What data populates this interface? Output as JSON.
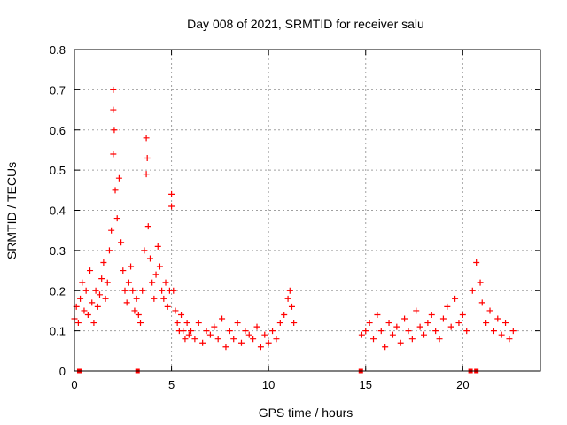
{
  "chart_data": {
    "type": "scatter",
    "title": "Day 008 of 2021, SRMTID for receiver salu",
    "xlabel": "GPS time / hours",
    "ylabel": "SRMTID / TECUs",
    "xlim": [
      0,
      24
    ],
    "ylim": [
      0,
      0.8
    ],
    "x_ticks": [
      0,
      5,
      10,
      15,
      20
    ],
    "x_tick_labels": [
      "0",
      "5",
      "10",
      "15",
      "20"
    ],
    "y_ticks": [
      0,
      0.1,
      0.2,
      0.3,
      0.4,
      0.5,
      0.6,
      0.7,
      0.8
    ],
    "y_tick_labels": [
      "0",
      "0.1",
      "0.2",
      "0.3",
      "0.4",
      "0.5",
      "0.6",
      "0.7",
      "0.8"
    ],
    "grid": true,
    "marker": "+",
    "color": "#ff0000",
    "baseline_markers_x": [
      0.25,
      3.25,
      14.75,
      20.4,
      20.7
    ],
    "series": [
      {
        "name": "SRMTID",
        "x": [
          0.0,
          0.1,
          0.2,
          0.3,
          0.4,
          0.5,
          0.6,
          0.7,
          0.8,
          0.9,
          1.0,
          1.1,
          1.2,
          1.3,
          1.4,
          1.5,
          1.6,
          1.7,
          1.8,
          1.9,
          2.0,
          2.0,
          2.0,
          2.05,
          2.1,
          2.2,
          2.3,
          2.4,
          2.5,
          2.6,
          2.7,
          2.8,
          2.9,
          3.0,
          3.1,
          3.2,
          3.3,
          3.4,
          3.5,
          3.6,
          3.7,
          3.7,
          3.75,
          3.8,
          3.9,
          4.0,
          4.1,
          4.2,
          4.3,
          4.4,
          4.5,
          4.6,
          4.7,
          4.8,
          4.9,
          5.0,
          5.0,
          5.1,
          5.2,
          5.3,
          5.4,
          5.5,
          5.6,
          5.7,
          5.8,
          5.9,
          6.0,
          6.2,
          6.4,
          6.6,
          6.8,
          7.0,
          7.2,
          7.4,
          7.6,
          7.8,
          8.0,
          8.2,
          8.4,
          8.6,
          8.8,
          9.0,
          9.2,
          9.4,
          9.6,
          9.8,
          10.0,
          10.2,
          10.4,
          10.6,
          10.8,
          11.0,
          11.1,
          11.2,
          11.3,
          14.8,
          15.0,
          15.2,
          15.4,
          15.6,
          15.8,
          16.0,
          16.2,
          16.4,
          16.6,
          16.8,
          17.0,
          17.2,
          17.4,
          17.6,
          17.8,
          18.0,
          18.2,
          18.4,
          18.6,
          18.8,
          19.0,
          19.2,
          19.4,
          19.6,
          19.8,
          20.0,
          20.2,
          20.5,
          20.7,
          20.9,
          21.0,
          21.2,
          21.4,
          21.6,
          21.8,
          22.0,
          22.2,
          22.4,
          22.6
        ],
        "y": [
          0.13,
          0.16,
          0.12,
          0.18,
          0.22,
          0.15,
          0.2,
          0.14,
          0.25,
          0.17,
          0.12,
          0.2,
          0.16,
          0.19,
          0.23,
          0.27,
          0.18,
          0.22,
          0.3,
          0.35,
          0.54,
          0.65,
          0.7,
          0.6,
          0.45,
          0.38,
          0.48,
          0.32,
          0.25,
          0.2,
          0.17,
          0.22,
          0.26,
          0.2,
          0.15,
          0.18,
          0.14,
          0.12,
          0.2,
          0.3,
          0.58,
          0.49,
          0.53,
          0.36,
          0.28,
          0.22,
          0.18,
          0.24,
          0.31,
          0.26,
          0.2,
          0.18,
          0.22,
          0.16,
          0.2,
          0.44,
          0.41,
          0.2,
          0.15,
          0.12,
          0.1,
          0.14,
          0.1,
          0.08,
          0.12,
          0.09,
          0.1,
          0.08,
          0.12,
          0.07,
          0.1,
          0.09,
          0.11,
          0.08,
          0.13,
          0.06,
          0.1,
          0.08,
          0.12,
          0.07,
          0.1,
          0.09,
          0.08,
          0.11,
          0.06,
          0.09,
          0.07,
          0.1,
          0.08,
          0.12,
          0.14,
          0.18,
          0.2,
          0.16,
          0.12,
          0.09,
          0.1,
          0.12,
          0.08,
          0.14,
          0.1,
          0.06,
          0.12,
          0.09,
          0.11,
          0.07,
          0.13,
          0.1,
          0.08,
          0.15,
          0.11,
          0.09,
          0.12,
          0.14,
          0.1,
          0.08,
          0.13,
          0.16,
          0.11,
          0.18,
          0.12,
          0.14,
          0.1,
          0.2,
          0.27,
          0.22,
          0.17,
          0.12,
          0.15,
          0.1,
          0.13,
          0.09,
          0.12,
          0.08,
          0.1
        ]
      }
    ]
  }
}
